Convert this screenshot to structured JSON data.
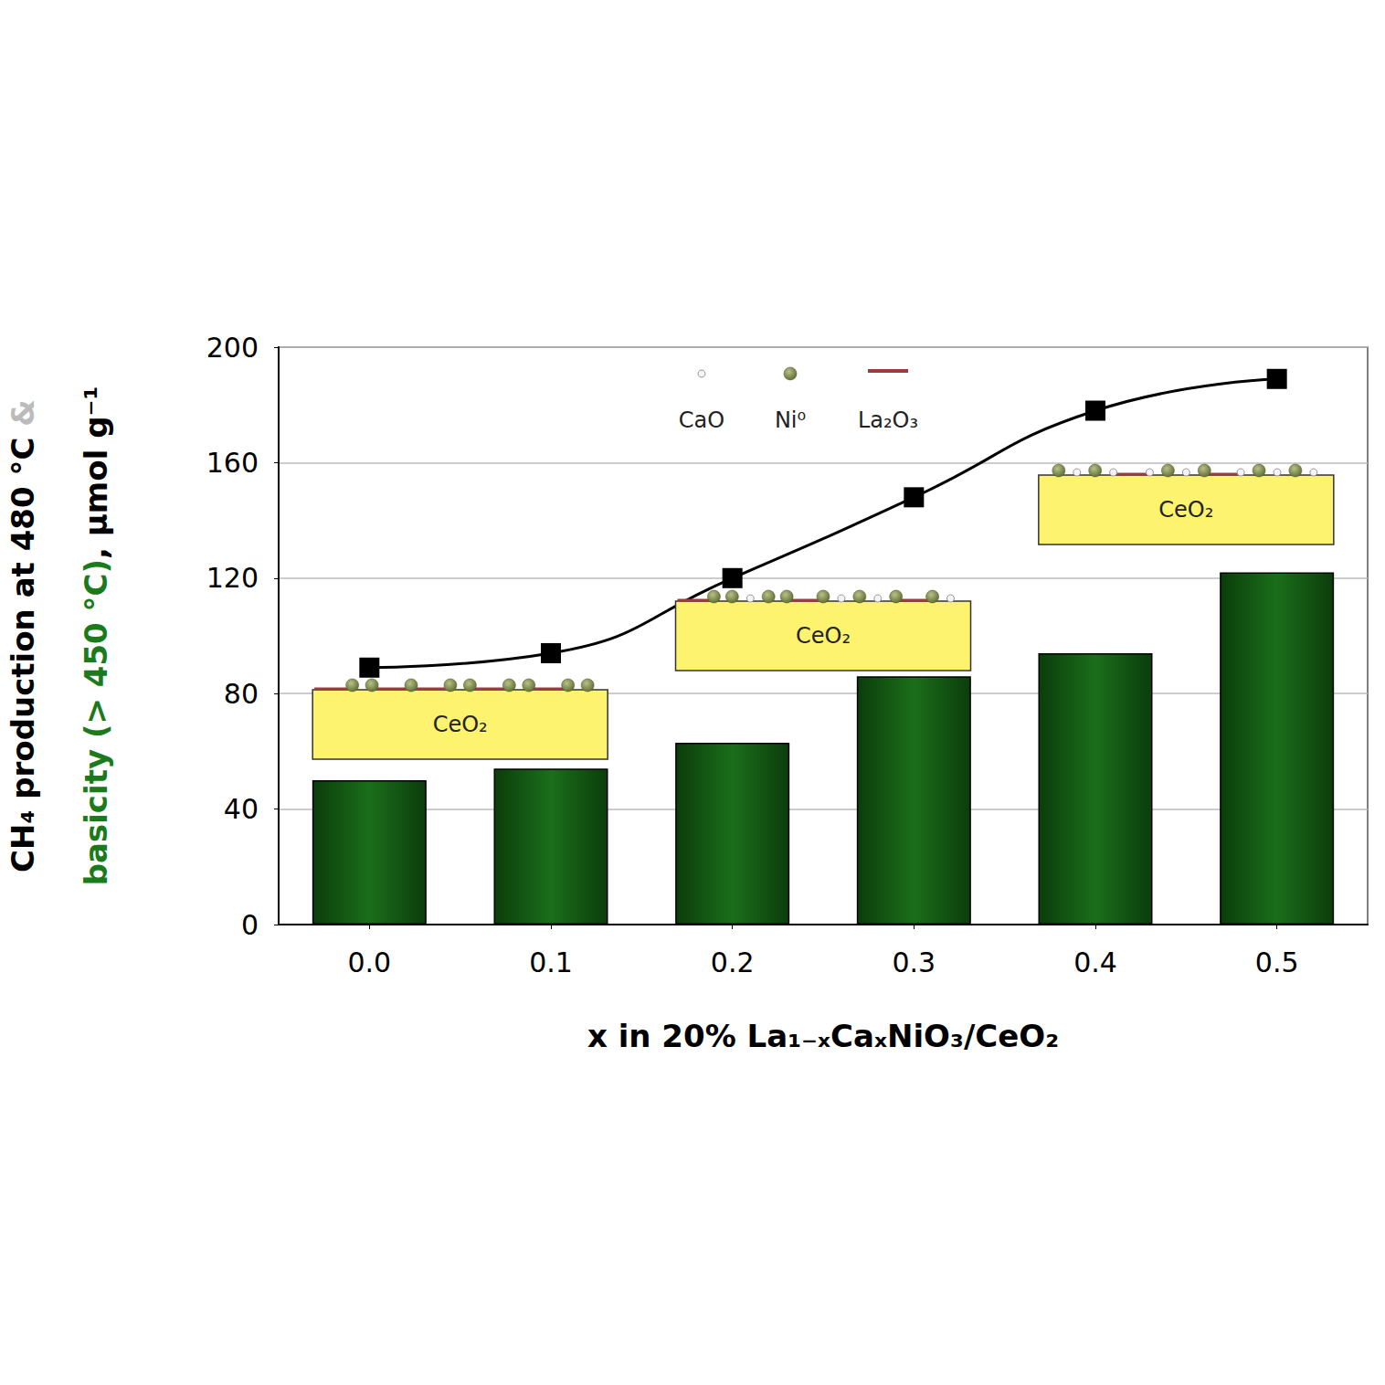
{
  "chart_data": {
    "type": "bar",
    "categories": [
      "0.0",
      "0.1",
      "0.2",
      "0.3",
      "0.4",
      "0.5"
    ],
    "series": [
      {
        "type": "bar",
        "color": "#1b6e1b",
        "values": [
          50,
          54,
          63,
          86,
          94,
          122
        ]
      },
      {
        "type": "line",
        "color": "#000000",
        "marker": "square",
        "line_style": "solid",
        "values": [
          89,
          94,
          120,
          148,
          178,
          189
        ]
      }
    ],
    "ylim": [
      0,
      200
    ],
    "yticks": [
      0,
      40,
      80,
      120,
      160,
      200
    ],
    "grid": true,
    "xlabel": "x in 20% La₁₋ₓCaₓNiO₃/CeO₂",
    "ylabel_lines": [
      [
        {
          "text": "CH₄ production at 480 °C ",
          "color": "#000000"
        },
        {
          "text": "&",
          "color": "#bbbbbb"
        }
      ],
      [
        {
          "text": "basicity (> 450 °C)",
          "color": "#1b7a1b"
        },
        {
          "text": ", µmol g⁻¹",
          "color": "#000000"
        }
      ]
    ],
    "particle_legend": [
      "CaO",
      "Ni⁰",
      "La₂O₃"
    ],
    "insets": [
      {
        "label": "CeO₂"
      },
      {
        "label": "CeO₂"
      },
      {
        "label": "CeO₂"
      }
    ]
  }
}
